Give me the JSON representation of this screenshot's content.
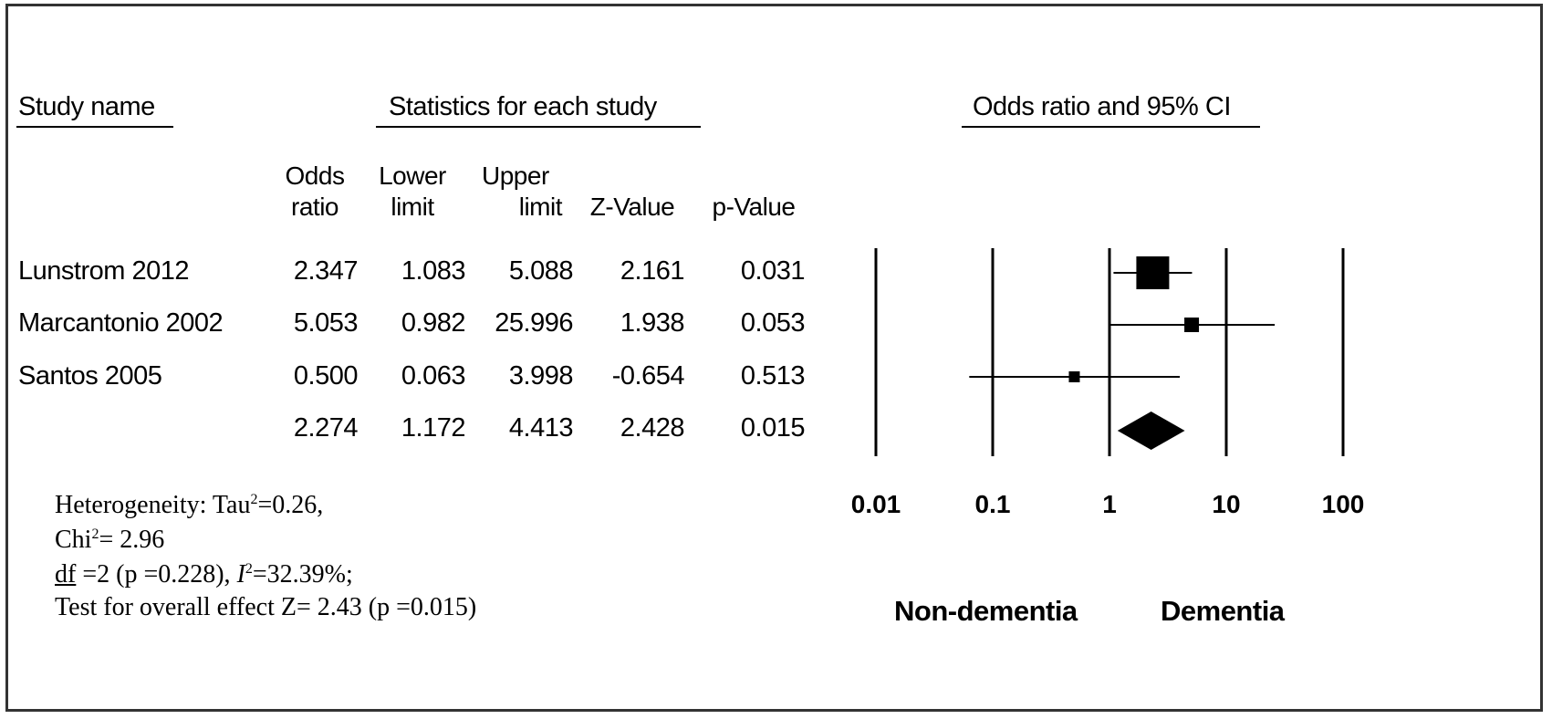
{
  "headers": {
    "study_name": "Study name",
    "statistics": "Statistics for each study",
    "plot_title": "Odds ratio and 95% CI"
  },
  "columns": {
    "odds_ratio": [
      "Odds",
      "ratio"
    ],
    "lower_limit": [
      "Lower",
      "limit"
    ],
    "upper_limit": [
      "Upper",
      "limit"
    ],
    "z_value": "Z-Value",
    "p_value": "p-Value"
  },
  "rows": [
    {
      "study": "Lunstrom 2012",
      "or": "2.347",
      "lower": "1.083",
      "upper": "5.088",
      "z": "2.161",
      "p": "0.031"
    },
    {
      "study": "Marcantonio 2002",
      "or": "5.053",
      "lower": "0.982",
      "upper": "25.996",
      "z": "1.938",
      "p": "0.053"
    },
    {
      "study": "Santos 2005",
      "or": "0.500",
      "lower": "0.063",
      "upper": "3.998",
      "z": "-0.654",
      "p": "0.513"
    },
    {
      "study": "",
      "or": "2.274",
      "lower": "1.172",
      "upper": "4.413",
      "z": "2.428",
      "p": "0.015"
    }
  ],
  "heterogeneity": {
    "line1_prefix": "Heterogeneity: Tau",
    "line1_sup": "2",
    "line1_suffix": "=0.26,",
    "line2_prefix": "Chi",
    "line2_sup": "2",
    "line2_suffix": "= 2.96",
    "line3_df": "df",
    "line3_mid": " =2 (p =0.228), ",
    "line3_i": "I",
    "line3_sup": "2",
    "line3_suffix": "=32.39%;",
    "line4": "Test for overall effect Z= 2.43 (p =0.015)"
  },
  "favours": {
    "left": "Non-dementia",
    "right": "Dementia"
  },
  "chart_data": {
    "type": "forest",
    "title": "Odds ratio and 95% CI",
    "x_scale": "log",
    "xlim": [
      0.01,
      100
    ],
    "x_ticks": [
      0.01,
      0.1,
      1,
      10,
      100
    ],
    "x_tick_labels": [
      "0.01",
      "0.1",
      "1",
      "10",
      "100"
    ],
    "studies": [
      {
        "name": "Lunstrom 2012",
        "or": 2.347,
        "lower": 1.083,
        "upper": 5.088,
        "weight": "large"
      },
      {
        "name": "Marcantonio 2002",
        "or": 5.053,
        "lower": 0.982,
        "upper": 25.996,
        "weight": "small"
      },
      {
        "name": "Santos 2005",
        "or": 0.5,
        "lower": 0.063,
        "upper": 3.998,
        "weight": "smallest"
      }
    ],
    "summary": {
      "or": 2.274,
      "lower": 1.172,
      "upper": 4.413
    },
    "colors": {
      "ink": "#000000",
      "frame": "#333333"
    }
  }
}
